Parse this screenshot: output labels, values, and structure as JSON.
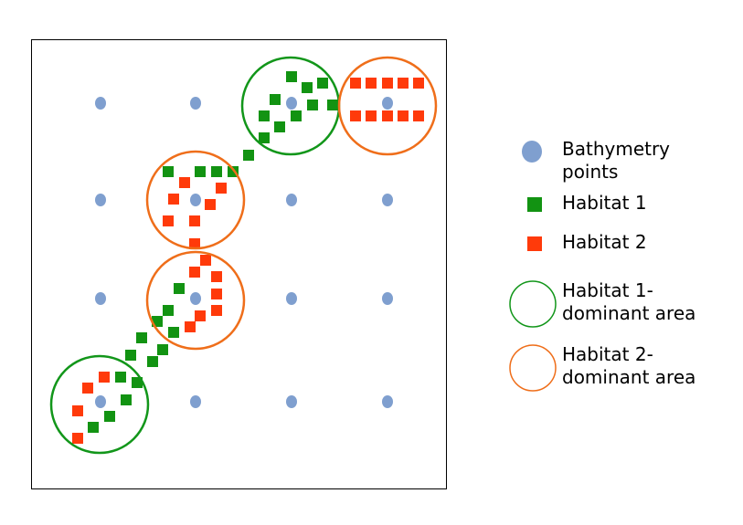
{
  "colors": {
    "bathymetry": "#7f9fcf",
    "habitat1": "#129312",
    "habitat2": "#ff3a0a",
    "habitat1_area": "#12961a",
    "habitat2_area": "#ef6e1a",
    "frame": "#000000"
  },
  "legend": {
    "bathymetry_label": "Bathymetry\npoints",
    "habitat1_label": "Habitat 1",
    "habitat2_label": "Habitat 2",
    "habitat1_area_label": "Habitat 1-\ndominant area",
    "habitat2_area_label": "Habitat 2-\ndominant area"
  }
}
